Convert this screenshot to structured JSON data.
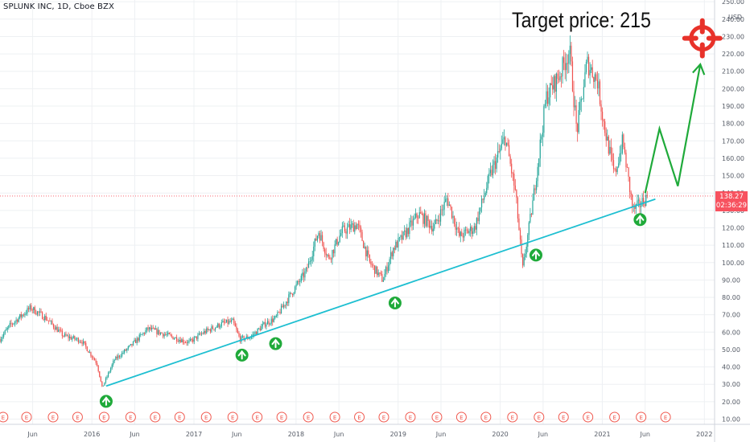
{
  "header": {
    "symbol_line": "SPLUNK INC, 1D, Cboe BZX",
    "annotation_text": "Target price: 215"
  },
  "price_label": {
    "price": "138.27",
    "countdown": "02:36:29"
  },
  "colors": {
    "up": "#26a69a",
    "down": "#ef5350",
    "trendline": "#1ebfd1",
    "arrow": "#1faa3a",
    "target": "#e8322a",
    "grid": "#eef0f3",
    "last_price": "#f7525f",
    "earnings": "#f05a50"
  },
  "chart_data": {
    "type": "candlestick",
    "title": "SPLUNK INC, 1D, Cboe BZX",
    "currency": "USD",
    "ylim": [
      7,
      251
    ],
    "y_ticks": [
      10,
      20,
      30,
      40,
      50,
      60,
      70,
      80,
      90,
      100,
      110,
      120,
      130,
      140,
      150,
      160,
      170,
      180,
      190,
      200,
      210,
      220,
      230,
      240,
      250
    ],
    "x_ticks": [
      "Jun",
      "2016",
      "Jun",
      "2017",
      "Jun",
      "2018",
      "Jun",
      "2019",
      "Jun",
      "2020",
      "Jun",
      "2021",
      "Jun",
      "2022"
    ],
    "x_tick_dates": [
      2015.42,
      2016.0,
      2016.42,
      2017.0,
      2017.42,
      2018.0,
      2018.42,
      2019.0,
      2019.42,
      2020.0,
      2020.42,
      2021.0,
      2021.42,
      2022.0
    ],
    "xlim": [
      2015.1,
      2022.1
    ],
    "last_price": 138.27,
    "price_path": [
      [
        2015.1,
        56
      ],
      [
        2015.2,
        64
      ],
      [
        2015.4,
        74
      ],
      [
        2015.55,
        68
      ],
      [
        2015.72,
        58
      ],
      [
        2015.9,
        55
      ],
      [
        2016.05,
        42
      ],
      [
        2016.1,
        28
      ],
      [
        2016.22,
        44
      ],
      [
        2016.38,
        52
      ],
      [
        2016.55,
        62
      ],
      [
        2016.75,
        58
      ],
      [
        2016.95,
        54
      ],
      [
        2017.1,
        60
      ],
      [
        2017.28,
        65
      ],
      [
        2017.38,
        66
      ],
      [
        2017.45,
        56
      ],
      [
        2017.55,
        57
      ],
      [
        2017.7,
        65
      ],
      [
        2017.8,
        68
      ],
      [
        2017.95,
        82
      ],
      [
        2018.1,
        95
      ],
      [
        2018.22,
        118
      ],
      [
        2018.32,
        102
      ],
      [
        2018.45,
        118
      ],
      [
        2018.6,
        122
      ],
      [
        2018.72,
        100
      ],
      [
        2018.85,
        90
      ],
      [
        2018.95,
        108
      ],
      [
        2019.05,
        115
      ],
      [
        2019.2,
        128
      ],
      [
        2019.35,
        120
      ],
      [
        2019.48,
        137
      ],
      [
        2019.6,
        115
      ],
      [
        2019.75,
        120
      ],
      [
        2019.9,
        150
      ],
      [
        2020.05,
        172
      ],
      [
        2020.15,
        140
      ],
      [
        2020.22,
        96
      ],
      [
        2020.32,
        135
      ],
      [
        2020.45,
        195
      ],
      [
        2020.58,
        208
      ],
      [
        2020.68,
        222
      ],
      [
        2020.75,
        175
      ],
      [
        2020.85,
        215
      ],
      [
        2020.95,
        205
      ],
      [
        2021.02,
        178
      ],
      [
        2021.12,
        150
      ],
      [
        2021.2,
        170
      ],
      [
        2021.3,
        130
      ],
      [
        2021.38,
        134
      ],
      [
        2021.44,
        138
      ]
    ],
    "trendline": {
      "from": [
        2016.14,
        29
      ],
      "to": [
        2021.52,
        136.5
      ]
    },
    "projection": [
      [
        2021.42,
        140
      ],
      [
        2021.56,
        177
      ],
      [
        2021.74,
        144
      ],
      [
        2021.96,
        214
      ]
    ],
    "target_price": 215,
    "support_touches": [
      2016.14,
      2017.47,
      2017.8,
      2018.97,
      2020.35,
      2021.37
    ],
    "earnings_markers": [
      2015.13,
      2015.36,
      2015.62,
      2015.86,
      2016.12,
      2016.38,
      2016.62,
      2016.86,
      2017.12,
      2017.38,
      2017.62,
      2017.86,
      2018.12,
      2018.38,
      2018.62,
      2018.86,
      2019.12,
      2019.38,
      2019.62,
      2019.86,
      2020.12,
      2020.38,
      2020.62,
      2020.86,
      2021.12,
      2021.38,
      2021.62
    ],
    "earnings_label": "E"
  }
}
